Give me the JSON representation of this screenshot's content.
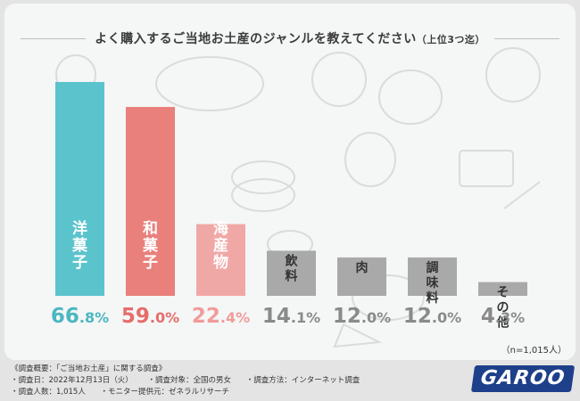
{
  "title": "よく購入するご当地お土産のジャンルを教えてください",
  "title_suffix": "（上位3つ迄）",
  "sample_size": "（n=1,015人）",
  "footer": {
    "heading": "《調査概要：「ご当地お土産」に関する調査》",
    "items": [
      "・調査日：2022年12月13日（火）",
      "・調査対象：全国の男女",
      "・調査方法：インターネット調査",
      "・調査人数：1,015人",
      "・モニター提供元：ゼネラルリサーチ"
    ]
  },
  "logo": "GAROO",
  "chart_data": {
    "type": "bar",
    "title": "よく購入するご当地お土産のジャンルを教えてください（上位3つ迄）",
    "categories": [
      "洋菓子",
      "和菓子",
      "海産物",
      "飲料",
      "肉",
      "調味料",
      "その他"
    ],
    "values": [
      66.8,
      59.0,
      22.4,
      14.1,
      12.0,
      12.0,
      4.3
    ],
    "value_labels": [
      "66.8%",
      "59.0%",
      "22.4%",
      "14.1%",
      "12.0%",
      "12.0%",
      "4.3%"
    ],
    "ylim": [
      0,
      70
    ],
    "grid": false,
    "colors": [
      "#5bc3cc",
      "#e9807c",
      "#f0a8a6",
      "#a9a9a9",
      "#a9a9a9",
      "#a9a9a9",
      "#a9a9a9"
    ],
    "label_colors": [
      "#4bb7c2",
      "#e56d6a",
      "#f09c9a",
      "#8a8a8a",
      "#8a8a8a",
      "#8a8a8a",
      "#8a8a8a"
    ]
  }
}
